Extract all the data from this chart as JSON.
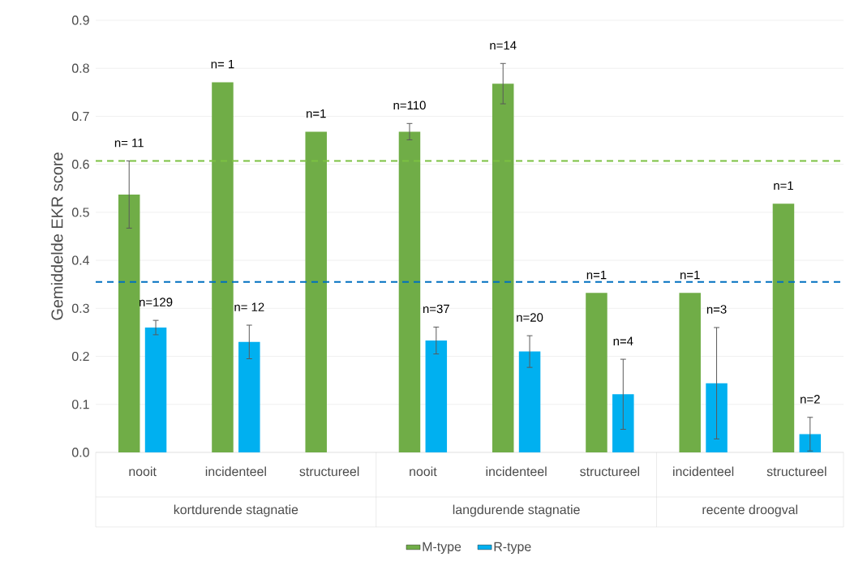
{
  "chart_data": {
    "type": "bar",
    "ylabel": "Gemiddelde EKR score",
    "categories": [
      "nooit",
      "incidenteel",
      "structureel",
      "nooit",
      "incidenteel",
      "structureel",
      "incidenteel",
      "structureel"
    ],
    "series": [
      {
        "name": "M-type",
        "color": "#70ad47",
        "values": [
          0.537,
          0.771,
          0.668,
          0.668,
          0.768,
          0.332,
          0.332,
          0.518
        ],
        "errors": [
          0.07,
          null,
          null,
          0.017,
          0.042,
          null,
          null,
          null
        ]
      },
      {
        "name": "R-type",
        "color": "#00b0f0",
        "values": [
          0.26,
          0.23,
          null,
          0.233,
          0.21,
          0.121,
          0.144,
          0.038
        ],
        "errors": [
          0.015,
          0.035,
          null,
          0.028,
          0.033,
          0.073,
          0.116,
          0.035
        ]
      }
    ],
    "ylim": [
      0,
      0.9
    ],
    "yticks": [
      {
        "value": 0,
        "label": "0.0"
      },
      {
        "value": 0.1,
        "label": "0.1"
      },
      {
        "value": 0.2,
        "label": "0.2"
      },
      {
        "value": 0.3,
        "label": "0.3"
      },
      {
        "value": 0.4,
        "label": "0.4"
      },
      {
        "value": 0.5,
        "label": "0.5"
      },
      {
        "value": 0.6,
        "label": "0.6"
      },
      {
        "value": 0.7,
        "label": "0.7"
      },
      {
        "value": 0.8,
        "label": "0.8"
      },
      {
        "value": 0.9,
        "label": "0.9"
      }
    ],
    "ref_lines": [
      {
        "axis": "y",
        "value": 0.607,
        "color": "#7cc142",
        "line_style": "dashed"
      },
      {
        "axis": "y",
        "value": 0.355,
        "color": "#0070c0",
        "line_style": "dashed"
      }
    ],
    "annotations": [
      "n= 11",
      "n=129",
      "n= 1",
      "n= 12",
      "n=1",
      "n=110",
      "n=37",
      "n=14",
      "n=20",
      "n=1",
      "n=4",
      "n=1",
      "n=3",
      "n=1",
      "n=2",
      "kortdurende stagnatie",
      "langdurende stagnatie",
      "recente droogval"
    ],
    "grid": "y",
    "legend": "bottom"
  }
}
